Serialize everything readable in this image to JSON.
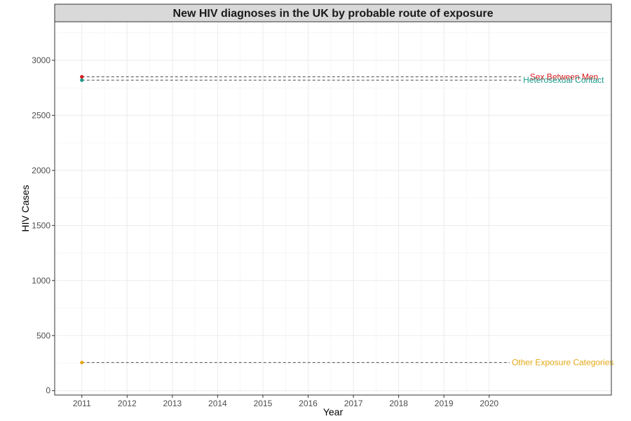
{
  "chart_data": {
    "type": "scatter",
    "title": "New HIV diagnoses in the UK by probable route of exposure",
    "xlabel": "Year",
    "ylabel": "HIV Cases",
    "x_ticks": [
      "2011",
      "2012",
      "2013",
      "2014",
      "2015",
      "2016",
      "2017",
      "2018",
      "2019",
      "2020"
    ],
    "y_ticks": [
      0,
      500,
      1000,
      1500,
      2000,
      2500,
      3000
    ],
    "xlim": [
      2010.4,
      2022.7
    ],
    "ylim": [
      -40,
      3350
    ],
    "grid": true,
    "series": [
      {
        "name": "Sex Between Men",
        "x": [
          2011
        ],
        "y": [
          2850
        ],
        "color": "#d7191c",
        "line_end_year": 2020.7,
        "label_year": 2020.9
      },
      {
        "name": "Heterosexual Contact",
        "x": [
          2011
        ],
        "y": [
          2820
        ],
        "color": "#1a9a8a",
        "line_end_year": 2020.7,
        "label_year": 2020.75
      },
      {
        "name": "Other Exposure Categories",
        "x": [
          2011
        ],
        "y": [
          255
        ],
        "color": "#e6a817",
        "line_end_year": 2020.45,
        "label_year": 2020.5
      }
    ]
  }
}
